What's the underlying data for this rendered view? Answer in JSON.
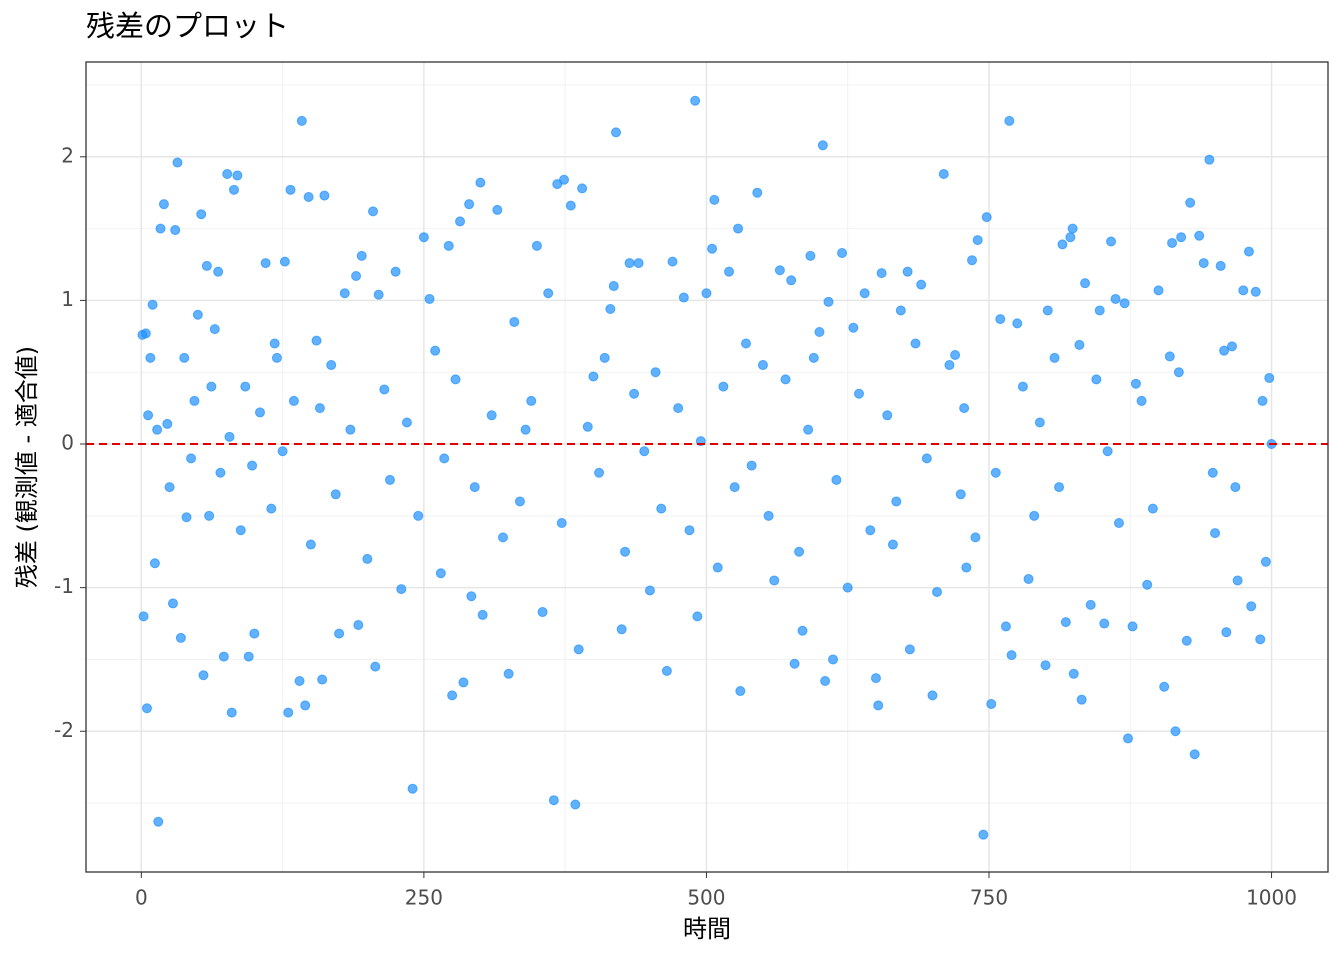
{
  "chart_data": {
    "type": "scatter",
    "title": "残差のプロット",
    "xlabel": "時間",
    "ylabel": "残差 (観測値 - 適合値)",
    "x": [
      1,
      2,
      4,
      5,
      8,
      10,
      12,
      15,
      17,
      20,
      23,
      28,
      30,
      32,
      35,
      40,
      50,
      53,
      55,
      58,
      62,
      68,
      73,
      76,
      80,
      82,
      85,
      95,
      100,
      110,
      120,
      127,
      130,
      132,
      140,
      142,
      145,
      148,
      155,
      160,
      162,
      175,
      180,
      190,
      192,
      195,
      205,
      207,
      210,
      225,
      230,
      240,
      250,
      255,
      265,
      272,
      275,
      282,
      285,
      290,
      292,
      300,
      302,
      315,
      325,
      340,
      350,
      355,
      360,
      365,
      368,
      374,
      380,
      384,
      387,
      390,
      400,
      415,
      418,
      420,
      425,
      432,
      440,
      450,
      465,
      470,
      480,
      490,
      492,
      500,
      505,
      507,
      510,
      520,
      528,
      530,
      545,
      560,
      565,
      575,
      578,
      585,
      592,
      600,
      603,
      605,
      608,
      612,
      620,
      625,
      630,
      640,
      650,
      652,
      655,
      665,
      672,
      678,
      680,
      690,
      700,
      704,
      710,
      720,
      730,
      735,
      740,
      745,
      748,
      752,
      760,
      765,
      768,
      770,
      775,
      785,
      800,
      802,
      815,
      818,
      822,
      824,
      825,
      830,
      832,
      835,
      840,
      848,
      852,
      858,
      862,
      870,
      873,
      877,
      880,
      890,
      900,
      905,
      910,
      912,
      915,
      920,
      925,
      928,
      932,
      936,
      940,
      945,
      950,
      955,
      960,
      965,
      970,
      975,
      980,
      982,
      986,
      990,
      995,
      998,
      1000,
      6,
      14,
      25,
      38,
      44,
      47,
      60,
      65,
      70,
      78,
      88,
      92,
      98,
      105,
      115,
      118,
      125,
      135,
      150,
      158,
      168,
      172,
      185,
      200,
      215,
      220,
      235,
      245,
      260,
      268,
      278,
      295,
      310,
      320,
      330,
      335,
      345,
      372,
      395,
      405,
      410,
      428,
      436,
      445,
      455,
      460,
      475,
      485,
      495,
      515,
      525,
      535,
      540,
      550,
      555,
      570,
      582,
      590,
      595,
      615,
      635,
      645,
      660,
      668,
      685,
      695,
      715,
      725,
      728,
      738,
      756,
      780,
      790,
      795,
      808,
      812,
      845,
      855,
      865,
      885,
      895,
      918,
      948,
      958,
      968,
      992
    ],
    "values": [
      0.76,
      -1.2,
      0.77,
      -1.84,
      0.6,
      0.97,
      -0.83,
      -2.63,
      1.5,
      1.67,
      0.14,
      -1.11,
      1.49,
      1.96,
      -1.35,
      -0.51,
      0.9,
      1.6,
      -1.61,
      1.24,
      0.4,
      1.2,
      -1.48,
      1.88,
      -1.87,
      1.77,
      1.87,
      -1.48,
      -1.32,
      1.26,
      0.6,
      1.27,
      -1.87,
      1.77,
      -1.65,
      2.25,
      -1.82,
      1.72,
      0.72,
      -1.64,
      1.73,
      -1.32,
      1.05,
      1.17,
      -1.26,
      1.31,
      1.62,
      -1.55,
      1.04,
      1.2,
      -1.01,
      -2.4,
      1.44,
      1.01,
      -0.9,
      1.38,
      -1.75,
      1.55,
      -1.66,
      1.67,
      -1.06,
      1.82,
      -1.19,
      1.63,
      -1.6,
      0.1,
      1.38,
      -1.17,
      1.05,
      -2.48,
      1.81,
      1.84,
      1.66,
      -2.51,
      -1.43,
      1.78,
      0.47,
      0.94,
      1.1,
      2.17,
      -1.29,
      1.26,
      1.26,
      -1.02,
      -1.58,
      1.27,
      1.02,
      2.39,
      -1.2,
      1.05,
      1.36,
      1.7,
      -0.86,
      1.2,
      1.5,
      -1.72,
      1.75,
      -0.95,
      1.21,
      1.14,
      -1.53,
      -1.3,
      1.31,
      0.78,
      2.08,
      -1.65,
      0.99,
      -1.5,
      1.33,
      -1.0,
      0.81,
      1.05,
      -1.63,
      -1.82,
      1.19,
      -0.7,
      0.93,
      1.2,
      -1.43,
      1.11,
      -1.75,
      -1.03,
      1.88,
      0.62,
      -0.86,
      1.28,
      1.42,
      -2.72,
      1.58,
      -1.81,
      0.87,
      -1.27,
      2.25,
      -1.47,
      0.84,
      -0.94,
      -1.54,
      0.93,
      1.39,
      -1.24,
      1.44,
      1.5,
      -1.6,
      0.69,
      -1.78,
      1.12,
      -1.12,
      0.93,
      -1.25,
      1.41,
      1.01,
      0.98,
      -2.05,
      -1.27,
      0.42,
      -0.98,
      1.07,
      -1.69,
      0.61,
      1.4,
      -2.0,
      1.44,
      -1.37,
      1.68,
      -2.16,
      1.45,
      1.26,
      1.98,
      -0.62,
      1.24,
      -1.31,
      0.68,
      -0.95,
      1.07,
      1.34,
      -1.13,
      1.06,
      -1.36,
      -0.82,
      0.46,
      0.0,
      0.2,
      0.1,
      -0.3,
      0.6,
      -0.1,
      0.3,
      -0.5,
      0.8,
      -0.2,
      0.05,
      -0.6,
      0.4,
      -0.15,
      0.22,
      -0.45,
      0.7,
      -0.05,
      0.3,
      -0.7,
      0.25,
      0.55,
      -0.35,
      0.1,
      -0.8,
      0.38,
      -0.25,
      0.15,
      -0.5,
      0.65,
      -0.1,
      0.45,
      -0.3,
      0.2,
      -0.65,
      0.85,
      -0.4,
      0.3,
      -0.55,
      0.12,
      -0.2,
      0.6,
      -0.75,
      0.35,
      -0.05,
      0.5,
      -0.45,
      0.25,
      -0.6,
      0.02,
      0.4,
      -0.3,
      0.7,
      -0.15,
      0.55,
      -0.5,
      0.45,
      -0.75,
      0.1,
      0.6,
      -0.25,
      0.35,
      -0.6,
      0.2,
      -0.4,
      0.7,
      -0.1,
      0.55,
      -0.35,
      0.25,
      -0.65,
      -0.2,
      0.4,
      -0.5,
      0.15,
      0.6,
      -0.3,
      0.45,
      -0.05,
      -0.55,
      0.3,
      -0.45,
      0.5,
      -0.2,
      0.65,
      -0.3,
      0.3
    ],
    "color": "#1E90FF",
    "alpha": 0.7,
    "hline": 0,
    "hline_color": "#E00000",
    "xlim": [
      -48.95,
      1049.95
    ],
    "xticks": [
      0,
      250,
      500,
      750,
      1000
    ],
    "ylim": [
      -2.98,
      2.66
    ],
    "yticks": [
      -2,
      -1,
      0,
      1,
      2
    ],
    "grid": true
  }
}
